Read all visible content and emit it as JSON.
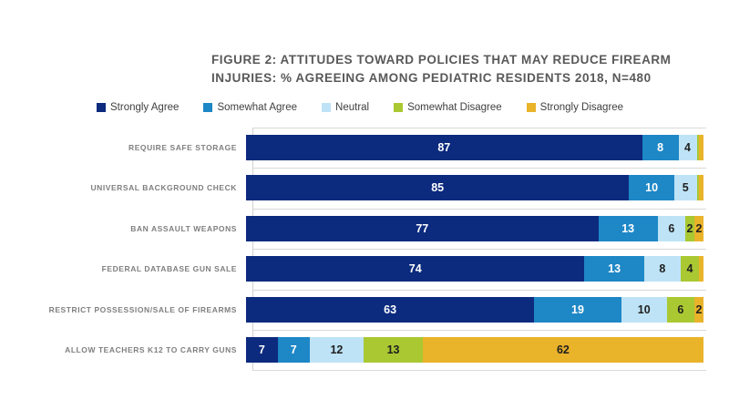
{
  "title": {
    "line1": "FIGURE 2: ATTITUDES TOWARD POLICIES THAT MAY REDUCE FIREARM",
    "line2": "INJURIES: % AGREEING AMONG PEDIATRIC RESIDENTS 2018, N=480"
  },
  "chart_data": {
    "type": "bar",
    "stacked": true,
    "orientation": "horizontal",
    "unit": "percent",
    "title": "FIGURE 2: ATTITUDES TOWARD POLICIES THAT MAY REDUCE FIREARM INJURIES: % AGREEING AMONG PEDIATRIC RESIDENTS 2018, N=480",
    "legend_position": "top",
    "xlim": [
      0,
      100
    ],
    "grid": "category-separators",
    "label_min_value": 2,
    "categories": [
      "REQUIRE SAFE STORAGE",
      "UNIVERSAL BACKGROUND CHECK",
      "BAN ASSAULT WEAPONS",
      "FEDERAL DATABASE GUN SALE",
      "RESTRICT POSSESSION/SALE OF FIREARMS",
      "ALLOW TEACHERS K12 TO CARRY GUNS"
    ],
    "series": [
      {
        "name": "Strongly Agree",
        "color": "#0c2a7e",
        "text_color": "#ffffff",
        "values": [
          87,
          85,
          77,
          74,
          63,
          7
        ]
      },
      {
        "name": "Somewhat Agree",
        "color": "#1e87c6",
        "text_color": "#ffffff",
        "values": [
          8,
          10,
          13,
          13,
          19,
          7
        ]
      },
      {
        "name": "Neutral",
        "color": "#bee3f6",
        "text_color": "#1f1f1f",
        "values": [
          4,
          5,
          6,
          8,
          10,
          12
        ]
      },
      {
        "name": "Somewhat Disagree",
        "color": "#aac832",
        "text_color": "#1f1f1f",
        "values": [
          0.5,
          0.5,
          2,
          4,
          6,
          13
        ]
      },
      {
        "name": "Strongly Disagree",
        "color": "#e9b32a",
        "text_color": "#1f1f1f",
        "values": [
          1,
          1,
          2,
          1,
          2,
          62
        ]
      }
    ],
    "colors": {
      "title_text": "#595959",
      "category_label_text": "#7f7f7f",
      "legend_text": "#404040",
      "gridline": "#d9d9d9",
      "background": "#ffffff"
    }
  }
}
